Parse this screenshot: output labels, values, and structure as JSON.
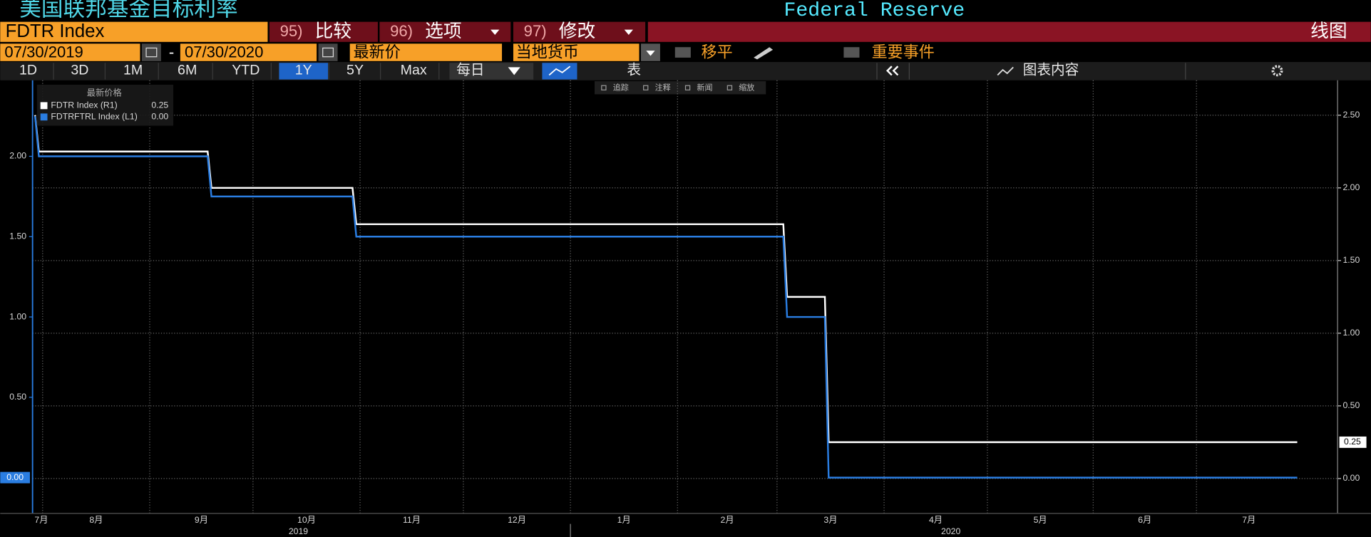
{
  "header": {
    "title": "美国联邦基金目标利率",
    "source": "Federal Reserve"
  },
  "toolbar1": {
    "ticker": "FDTR Index",
    "buttons": [
      {
        "num": "95)",
        "label": "比较"
      },
      {
        "num": "96)",
        "label": "选项"
      },
      {
        "num": "97)",
        "label": "修改"
      }
    ],
    "view": "线图"
  },
  "toolbar2": {
    "start_date": "07/30/2019",
    "separator": "-",
    "end_date": "07/30/2020",
    "field": "最新价",
    "currency": "当地货币",
    "options": [
      "移平",
      "重要事件"
    ]
  },
  "toolbar3": {
    "ranges": [
      "1D",
      "3D",
      "1M",
      "6M",
      "YTD",
      "1Y",
      "5Y",
      "Max"
    ],
    "active_range": "1Y",
    "frequency": "每日",
    "table": "表",
    "chart_content": "图表内容"
  },
  "chart_tools": [
    "追踪",
    "注释",
    "新闻",
    "缩放"
  ],
  "chart_data": {
    "type": "line",
    "legend_title": "最新价格",
    "x": [
      2019.575,
      2019.578,
      2019.712,
      2019.715,
      2019.827,
      2019.83,
      2020.169,
      2020.172,
      2020.202,
      2020.205,
      2020.577
    ],
    "series": [
      {
        "name": "FDTR Index (R1)",
        "color": "#ffffff",
        "axis": "y2",
        "values": [
          2.5,
          2.25,
          2.25,
          2.0,
          2.0,
          1.75,
          1.75,
          1.25,
          1.25,
          0.25,
          0.25
        ],
        "value_labels": [
          null,
          null,
          null,
          null,
          null,
          null,
          null,
          null,
          null,
          null,
          "0.25"
        ]
      },
      {
        "name": "FDTRFTRL Index (L1)",
        "color": "#2a7de1",
        "axis": "y",
        "values": [
          2.25,
          2.0,
          2.0,
          1.75,
          1.75,
          1.5,
          1.5,
          1.0,
          1.0,
          0.0,
          0.0
        ],
        "value_labels": [
          null,
          null,
          null,
          null,
          null,
          null,
          null,
          null,
          null,
          null,
          "0.00"
        ]
      }
    ],
    "xlim": [
      2019.573,
      2020.609
    ],
    "xticks": [
      {
        "value": 2019.496,
        "label": "7月"
      },
      {
        "value": 2019.581,
        "label": "8月"
      },
      {
        "value": 2019.666,
        "label": "9月"
      },
      {
        "value": 2019.748,
        "label": "10月"
      },
      {
        "value": 2019.833,
        "label": "11月"
      },
      {
        "value": 2019.915,
        "label": "12月"
      },
      {
        "value": 2020.0,
        "label": "1月"
      },
      {
        "value": 2020.085,
        "label": "2月"
      },
      {
        "value": 2020.164,
        "label": "3月"
      },
      {
        "value": 2020.249,
        "label": "4月"
      },
      {
        "value": 2020.331,
        "label": "5月"
      },
      {
        "value": 2020.415,
        "label": "6月"
      },
      {
        "value": 2020.497,
        "label": "7月"
      }
    ],
    "xticks_major": [
      {
        "value": 2019.784,
        "label": "2019"
      },
      {
        "value": 2020.302,
        "label": "2020"
      }
    ],
    "ylim": [
      -0.223,
      2.473
    ],
    "yticks": [
      {
        "value": 0.5,
        "label": "0.50"
      },
      {
        "value": 1.0,
        "label": "1.00"
      },
      {
        "value": 1.5,
        "label": "1.50"
      },
      {
        "value": 2.0,
        "label": "2.00"
      }
    ],
    "y2lim": [
      -0.24,
      2.74
    ],
    "y2ticks": [
      {
        "value": 0.0,
        "label": "0.00"
      },
      {
        "value": 0.5,
        "label": "0.50"
      },
      {
        "value": 1.0,
        "label": "1.00"
      },
      {
        "value": 1.5,
        "label": "1.50"
      },
      {
        "value": 2.0,
        "label": "2.00"
      },
      {
        "value": 2.5,
        "label": "2.50"
      }
    ],
    "grid": true,
    "legend": "upper left"
  }
}
